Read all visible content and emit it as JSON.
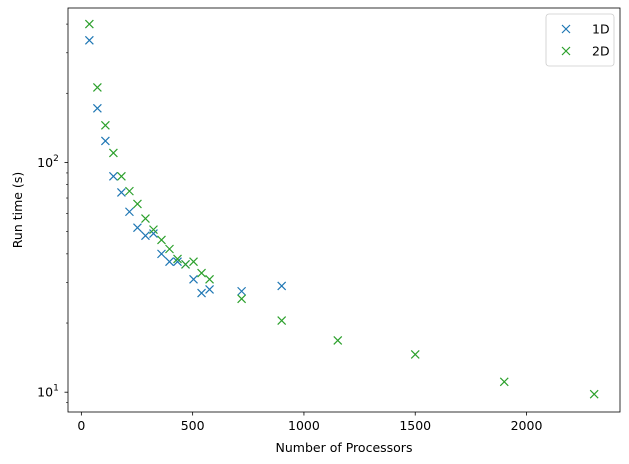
{
  "chart_data": {
    "type": "scatter",
    "title": "",
    "xlabel": "Number of Processors",
    "ylabel": "Run time (s)",
    "xlim": [
      -60,
      2420
    ],
    "ylim": [
      8.2,
      470
    ],
    "yscale": "log",
    "marker": "x",
    "grid": false,
    "legend": {
      "placement": "top-right"
    },
    "x_ticks": [
      {
        "value": 0,
        "label": "0"
      },
      {
        "value": 500,
        "label": "500"
      },
      {
        "value": 1000,
        "label": "1000"
      },
      {
        "value": 1500,
        "label": "1500"
      },
      {
        "value": 2000,
        "label": "2000"
      }
    ],
    "y_ticks": [
      {
        "value": 10,
        "base": "10",
        "exp": "1"
      },
      {
        "value": 100,
        "base": "10",
        "exp": "2"
      }
    ],
    "series": [
      {
        "name": "1D",
        "color": "#1f77b4",
        "x": [
          36,
          72,
          108,
          144,
          180,
          216,
          252,
          288,
          324,
          360,
          396,
          432,
          468,
          504,
          540,
          576,
          720,
          900
        ],
        "y": [
          340,
          172,
          124,
          87,
          74,
          61,
          52,
          48,
          49,
          40,
          37,
          37,
          36,
          31,
          27,
          28,
          27.5,
          29
        ]
      },
      {
        "name": "2D",
        "color": "#2ca02c",
        "x": [
          36,
          72,
          108,
          144,
          180,
          216,
          252,
          288,
          324,
          360,
          396,
          432,
          468,
          504,
          540,
          576,
          720,
          900,
          1152,
          1500,
          1900,
          2304
        ],
        "y": [
          400,
          212,
          145,
          110,
          87,
          75,
          66,
          57,
          51,
          46,
          42,
          38,
          36,
          37,
          33,
          31,
          25.5,
          20.5,
          16.8,
          14.6,
          11.1,
          9.8
        ]
      }
    ]
  }
}
